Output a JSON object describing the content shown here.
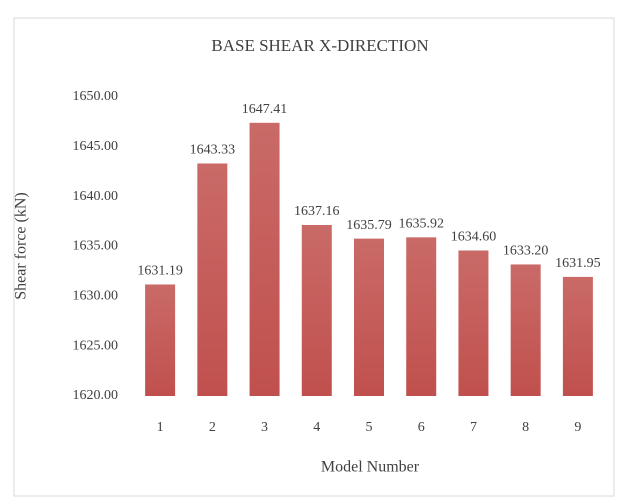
{
  "chart_data": {
    "type": "bar",
    "title": "BASE SHEAR X-DIRECTION",
    "x_label": "Model Number",
    "y_label": "Shear force (kN)",
    "categories": [
      "1",
      "2",
      "3",
      "4",
      "5",
      "6",
      "7",
      "8",
      "9"
    ],
    "values": [
      1631.19,
      1643.33,
      1647.41,
      1637.16,
      1635.79,
      1635.92,
      1634.6,
      1633.2,
      1631.95
    ],
    "value_labels": [
      "1631.19",
      "1643.33",
      "1647.41",
      "1637.16",
      "1635.79",
      "1635.92",
      "1634.60",
      "1633.20",
      "1631.95"
    ],
    "color": "#c0504d",
    "ylim": [
      1620,
      1650
    ],
    "yticks": [
      {
        "value": 1620,
        "label": "1620.00"
      },
      {
        "value": 1625,
        "label": "1625.00"
      },
      {
        "value": 1630,
        "label": "1630.00"
      },
      {
        "value": 1635,
        "label": "1635.00"
      },
      {
        "value": 1640,
        "label": "1640.00"
      },
      {
        "value": 1645,
        "label": "1645.00"
      },
      {
        "value": 1650,
        "label": "1650.00"
      }
    ],
    "grid": false
  }
}
